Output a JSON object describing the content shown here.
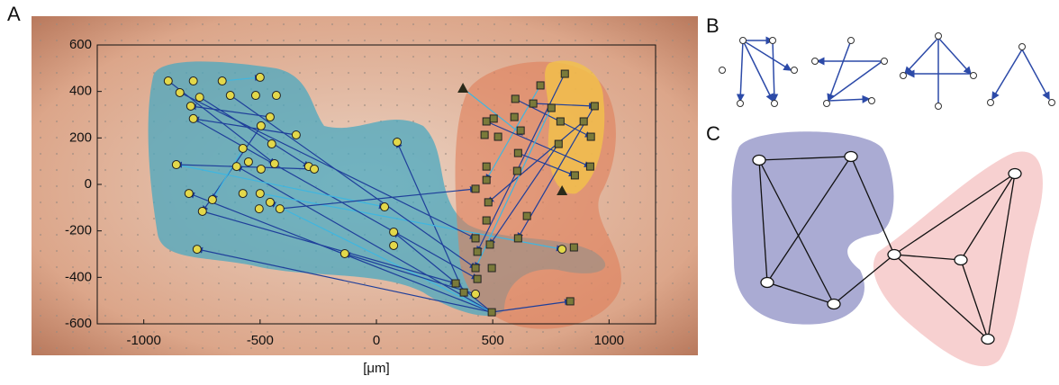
{
  "panel_labels": [
    "A",
    "B",
    "C"
  ],
  "chart_data": {
    "type": "scatter",
    "xlabel": "[μm]",
    "xlim": [
      -1200,
      1200
    ],
    "ylim": [
      -600,
      600
    ],
    "xticks": [
      -1000,
      -500,
      0,
      500,
      1000
    ],
    "yticks": [
      -600,
      -400,
      -200,
      0,
      200,
      400,
      600
    ],
    "series": [
      {
        "marker": "circle",
        "color": "#e3d84a",
        "x": [
          -895,
          -787,
          -663,
          -500,
          -845,
          -760,
          -798,
          -628,
          -519,
          -430,
          -787,
          -457,
          -345,
          -496,
          -574,
          -450,
          -860,
          -601,
          -550,
          -496,
          -438,
          -291,
          -267,
          -806,
          -705,
          -574,
          -500,
          -457,
          -748,
          -504,
          -415,
          35,
          89,
          74,
          74,
          -136,
          -771,
          426,
          798
        ],
        "values": [
          445,
          445,
          445,
          461,
          395,
          375,
          337,
          383,
          383,
          383,
          283,
          290,
          213,
          252,
          155,
          174,
          85,
          77,
          97,
          66,
          89,
          77,
          66,
          -39,
          -66,
          -39,
          -39,
          -77,
          -116,
          -105,
          -105,
          -97,
          182,
          -205,
          -263,
          -298,
          -279,
          -472,
          -279
        ]
      },
      {
        "marker": "square",
        "color": "#7a7a3a",
        "x": [
          810,
          705,
          597,
          674,
          473,
          504,
          593,
          752,
          620,
          523,
          465,
          791,
          938,
          891,
          922,
          783,
          609,
          473,
          605,
          853,
          919,
          473,
          426,
          481,
          647,
          473,
          426,
          609,
          488,
          434,
          426,
          496,
          434,
          341,
          376,
          833,
          496,
          849
        ],
        "values": [
          476,
          426,
          368,
          348,
          271,
          283,
          290,
          329,
          232,
          205,
          213,
          271,
          337,
          271,
          205,
          174,
          135,
          77,
          58,
          39,
          77,
          19,
          -19,
          -77,
          -136,
          -155,
          -232,
          -232,
          -259,
          -290,
          -360,
          -360,
          -407,
          -426,
          -465,
          -503,
          -550,
          -271
        ]
      },
      {
        "marker": "triangle",
        "color": "#2a2a1a",
        "x": [
          372,
          798
        ],
        "values": [
          414,
          -27
        ]
      }
    ]
  }
}
